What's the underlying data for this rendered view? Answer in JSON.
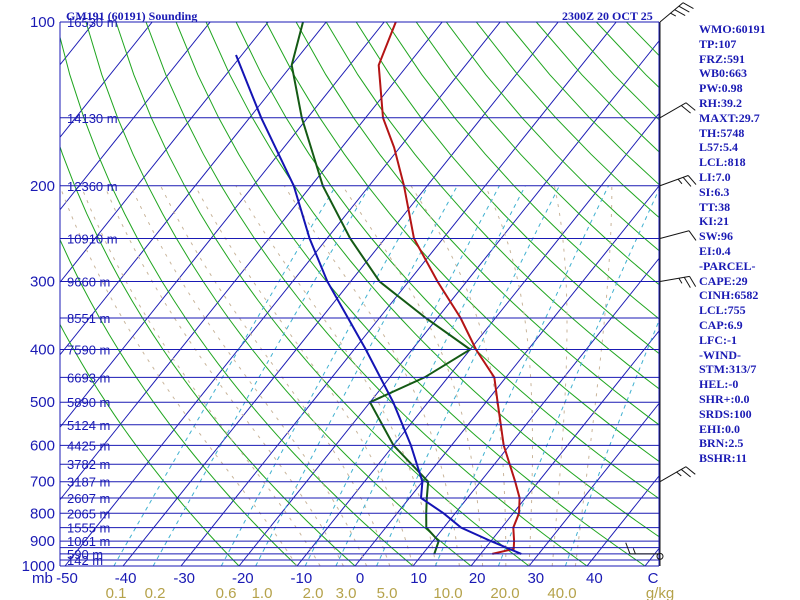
{
  "header": {
    "title": "GM191 (60191) Sounding",
    "time": "2300Z 20 OCT 25"
  },
  "colors": {
    "axis": "#1a1ab4",
    "isobar": "#1a1ab4",
    "isotherm": "#1a1ab4",
    "dry_adiabat": "#1fa51f",
    "moist_adiabat": "#c9b59b",
    "mixing_ratio": "#3fb0d0",
    "temperature": "#b41414",
    "dewpoint": "#145a14",
    "parcel": "#1414b4",
    "wind": "#141414",
    "mix_label": "#b5a24a"
  },
  "indices": [
    "WMO:60191",
    "TP:107",
    "FRZ:591",
    "WB0:663",
    "PW:0.98",
    "RH:39.2",
    "MAXT:29.7",
    "TH:5748",
    "L57:5.4",
    "LCL:818",
    "LI:7.0",
    "SI:6.3",
    "TT:38",
    "KI:21",
    "SW:96",
    "EI:0.4",
    "-PARCEL-",
    "CAPE:29",
    "CINH:6582",
    "LCL:755",
    "CAP:6.9",
    "LFC:-1",
    "-WIND-",
    "STM:313/7",
    "HEL:-0",
    "SHR+:0.0",
    "SRDS:100",
    "EHI:0.0",
    "BRN:2.5",
    "BSHR:11"
  ],
  "chart_data": {
    "type": "line",
    "title": "GM191 (60191) Sounding",
    "diagram": "Skew-T log-P",
    "x_unit": "C",
    "y_unit": "mb",
    "xlim": [
      -50,
      50
    ],
    "ylim": [
      1000,
      100
    ],
    "temperature_ticks": [
      "-50",
      "-40",
      "-30",
      "-20",
      "-10",
      "0",
      "10",
      "20",
      "30",
      "40",
      "C"
    ],
    "pressure_ticks": [
      "100",
      "200",
      "300",
      "400",
      "500",
      "600",
      "700",
      "800",
      "900",
      "1000"
    ],
    "corner_label": "mb",
    "mixing_ratio_ticks": [
      "0.1",
      "0.2",
      "0.6",
      "1.0",
      "2.0",
      "3.0",
      "5.0",
      "10.0",
      "20.0",
      "40.0",
      "g/kg"
    ],
    "isobars_mb": [
      100,
      150,
      200,
      250,
      300,
      350,
      400,
      450,
      500,
      550,
      600,
      650,
      700,
      750,
      800,
      850,
      900,
      925,
      950,
      975,
      1000
    ],
    "altitude_labels": [
      {
        "p": 100,
        "label": "16530 m"
      },
      {
        "p": 150,
        "label": "14130 m"
      },
      {
        "p": 200,
        "label": "12360 m"
      },
      {
        "p": 250,
        "label": "10910 m"
      },
      {
        "p": 300,
        "label": "9660 m"
      },
      {
        "p": 350,
        "label": "8551 m"
      },
      {
        "p": 400,
        "label": "7590 m"
      },
      {
        "p": 450,
        "label": "6693 m"
      },
      {
        "p": 500,
        "label": "5890 m"
      },
      {
        "p": 550,
        "label": "5124 m"
      },
      {
        "p": 600,
        "label": "4425 m"
      },
      {
        "p": 650,
        "label": "3782 m"
      },
      {
        "p": 700,
        "label": "3187 m"
      },
      {
        "p": 750,
        "label": "2607 m"
      },
      {
        "p": 800,
        "label": "2065 m"
      },
      {
        "p": 850,
        "label": "1555 m"
      },
      {
        "p": 900,
        "label": "1061 m"
      },
      {
        "p": 950,
        "label": "590 m"
      },
      {
        "p": 975,
        "label": "142 m"
      }
    ],
    "series": [
      {
        "name": "temperature",
        "points": [
          {
            "p": 950,
            "t": 22
          },
          {
            "p": 930,
            "t": 25
          },
          {
            "p": 900,
            "t": 24
          },
          {
            "p": 850,
            "t": 22
          },
          {
            "p": 800,
            "t": 21
          },
          {
            "p": 750,
            "t": 19
          },
          {
            "p": 700,
            "t": 16
          },
          {
            "p": 600,
            "t": 9
          },
          {
            "p": 500,
            "t": 2
          },
          {
            "p": 450,
            "t": -2
          },
          {
            "p": 400,
            "t": -9
          },
          {
            "p": 350,
            "t": -16
          },
          {
            "p": 300,
            "t": -25
          },
          {
            "p": 250,
            "t": -35
          },
          {
            "p": 200,
            "t": -44
          },
          {
            "p": 170,
            "t": -51
          },
          {
            "p": 150,
            "t": -57
          },
          {
            "p": 120,
            "t": -65
          },
          {
            "p": 100,
            "t": -68
          }
        ]
      },
      {
        "name": "dewpoint",
        "points": [
          {
            "p": 950,
            "t": 12
          },
          {
            "p": 900,
            "t": 11
          },
          {
            "p": 850,
            "t": 7
          },
          {
            "p": 800,
            "t": 5
          },
          {
            "p": 750,
            "t": 3
          },
          {
            "p": 700,
            "t": 1
          },
          {
            "p": 600,
            "t": -10
          },
          {
            "p": 500,
            "t": -20
          },
          {
            "p": 450,
            "t": -14
          },
          {
            "p": 400,
            "t": -10
          },
          {
            "p": 350,
            "t": -22
          },
          {
            "p": 300,
            "t": -35
          },
          {
            "p": 250,
            "t": -46
          },
          {
            "p": 200,
            "t": -58
          },
          {
            "p": 150,
            "t": -71
          },
          {
            "p": 120,
            "t": -80
          },
          {
            "p": 100,
            "t": -84
          }
        ]
      },
      {
        "name": "parcel",
        "points": [
          {
            "p": 950,
            "t": 27
          },
          {
            "p": 900,
            "t": 20
          },
          {
            "p": 850,
            "t": 13
          },
          {
            "p": 800,
            "t": 8
          },
          {
            "p": 750,
            "t": 2
          },
          {
            "p": 700,
            "t": 0
          },
          {
            "p": 600,
            "t": -7
          },
          {
            "p": 500,
            "t": -16
          },
          {
            "p": 400,
            "t": -28
          },
          {
            "p": 300,
            "t": -44
          },
          {
            "p": 250,
            "t": -53
          },
          {
            "p": 200,
            "t": -63
          },
          {
            "p": 150,
            "t": -78
          },
          {
            "p": 130,
            "t": -85
          },
          {
            "p": 115,
            "t": -91
          }
        ]
      }
    ],
    "wind_barbs": [
      {
        "p": 950,
        "dir": 90,
        "speed": 5
      },
      {
        "p": 700,
        "dir": 240,
        "speed": 15
      },
      {
        "p": 300,
        "dir": 260,
        "speed": 15
      },
      {
        "p": 250,
        "dir": 255,
        "speed": 10
      },
      {
        "p": 200,
        "dir": 250,
        "speed": 15
      },
      {
        "p": 150,
        "dir": 240,
        "speed": 20
      },
      {
        "p": 100,
        "dir": 230,
        "speed": 25
      }
    ]
  }
}
